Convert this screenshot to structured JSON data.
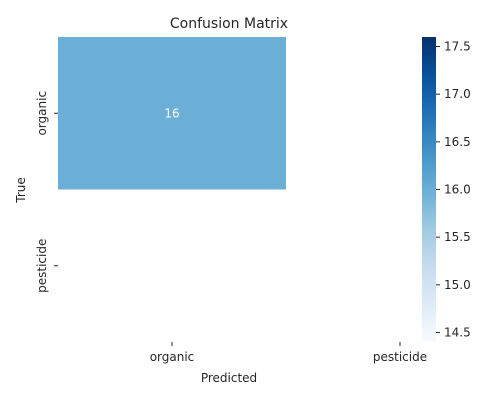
{
  "chart_data": {
    "type": "heatmap",
    "title": "Confusion Matrix",
    "xlabel": "Predicted",
    "ylabel": "True",
    "x_categories": [
      "organic",
      "pesticide"
    ],
    "y_categories": [
      "organic",
      "pesticide"
    ],
    "cells": [
      {
        "row": 0,
        "col": 0,
        "value": 16,
        "label": "16",
        "color": "#6baed6"
      },
      {
        "row": 0,
        "col": 1,
        "value": null,
        "label": ""
      },
      {
        "row": 1,
        "col": 0,
        "value": null,
        "label": ""
      },
      {
        "row": 1,
        "col": 1,
        "value": null,
        "label": ""
      }
    ],
    "colorbar": {
      "range": [
        14.4,
        17.6
      ],
      "ticks": [
        "14.5",
        "15.0",
        "15.5",
        "16.0",
        "16.5",
        "17.0",
        "17.5"
      ],
      "colormap": [
        "#f7fbff",
        "#deebf7",
        "#c6dbef",
        "#9ecae1",
        "#6baed6",
        "#4292c6",
        "#2171b5",
        "#08519c",
        "#08306b"
      ]
    },
    "cell_text_color": "#ffffff",
    "grid": false
  }
}
